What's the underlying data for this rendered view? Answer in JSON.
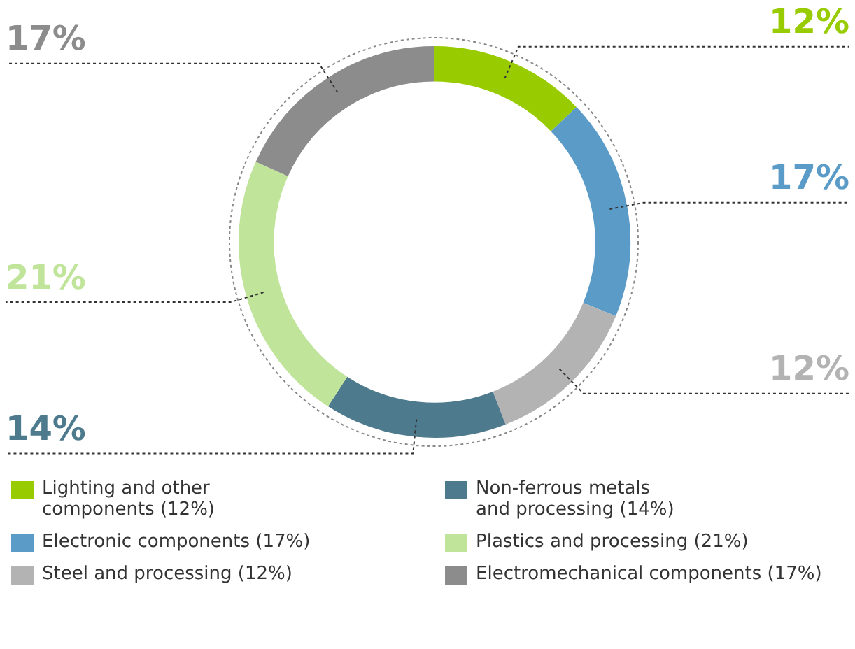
{
  "chart_data": {
    "type": "donut",
    "categories": [
      "Lighting and other components (12%)",
      "Electronic components (17%)",
      "Steel and processing (12%)",
      "Non-ferrous metals and processing (14%)",
      "Plastics and processing (21%)",
      "Electromechanical components (17%)"
    ],
    "values": [
      12,
      17,
      12,
      14,
      21,
      17
    ],
    "colors": [
      "#99cc00",
      "#5b9bc8",
      "#b3b3b3",
      "#4d7a8c",
      "#bfe49a",
      "#8c8c8c"
    ],
    "value_labels": [
      "12%",
      "17%",
      "12%",
      "14%",
      "21%",
      "17%"
    ],
    "legend": "bottom"
  }
}
